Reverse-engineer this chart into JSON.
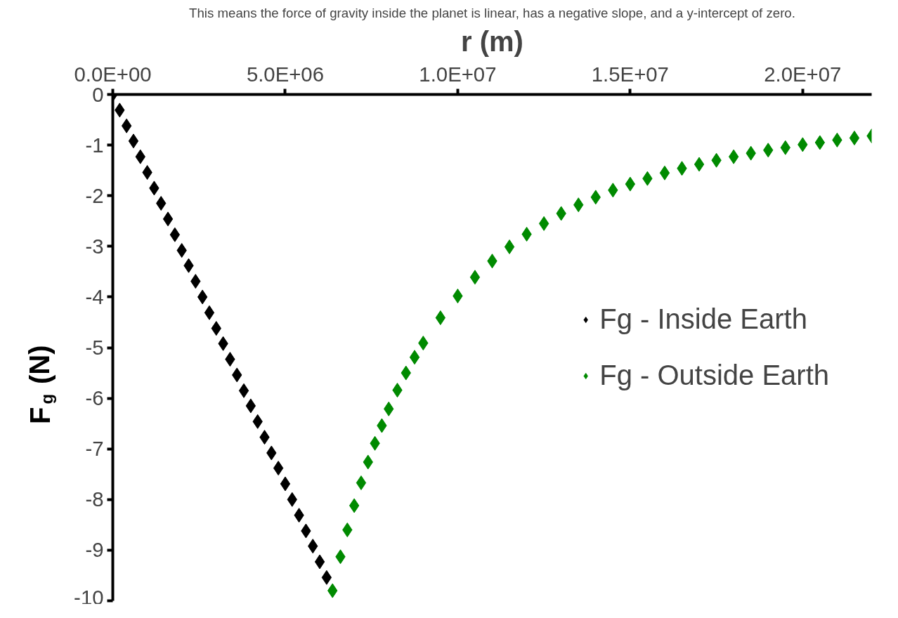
{
  "chart_data": {
    "type": "scatter",
    "xlabel": "r (m)",
    "ylabel": "F$_{g}$ (N)",
    "annotations": [
      "This means the force of gravity inside the planet is linear, has a negative slope, and a y-intercept of zero."
    ],
    "xlim": [
      0,
      22000000
    ],
    "ylim": [
      -10,
      0
    ],
    "xticks": [
      {
        "value": 0,
        "label": "0.0E+00"
      },
      {
        "value": 5000000,
        "label": "5.0E+06"
      },
      {
        "value": 10000000,
        "label": "1.0E+07"
      },
      {
        "value": 15000000,
        "label": "1.5E+07"
      },
      {
        "value": 20000000,
        "label": "2.0E+07"
      }
    ],
    "yticks": [
      0,
      -1,
      -2,
      -3,
      -4,
      -5,
      -6,
      -7,
      -8,
      -9,
      -10
    ],
    "grid": false,
    "legend": "right",
    "marker": "diamond",
    "series": [
      {
        "name": "Fg - Inside Earth",
        "color": "#000000",
        "x": [
          0,
          200000,
          400000,
          600000,
          800000,
          1000000,
          1200000,
          1400000,
          1600000,
          1800000,
          2000000,
          2200000,
          2400000,
          2600000,
          2800000,
          3000000,
          3200000,
          3400000,
          3600000,
          3800000,
          4000000,
          4200000,
          4400000,
          4600000,
          4800000,
          5000000,
          5200000,
          5400000,
          5600000,
          5800000,
          6000000,
          6200000
        ],
        "values": [
          0,
          -0.31,
          -0.62,
          -0.92,
          -1.23,
          -1.54,
          -1.85,
          -2.15,
          -2.46,
          -2.77,
          -3.08,
          -3.38,
          -3.69,
          -4.0,
          -4.31,
          -4.62,
          -4.92,
          -5.23,
          -5.54,
          -5.85,
          -6.15,
          -6.46,
          -6.77,
          -7.08,
          -7.38,
          -7.69,
          -8.0,
          -8.31,
          -8.62,
          -8.92,
          -9.23,
          -9.54
        ]
      },
      {
        "name": "Fg - Outside Earth",
        "color": "#008a00",
        "x": [
          6370000,
          6600000,
          6800000,
          7000000,
          7200000,
          7400000,
          7600000,
          7800000,
          8000000,
          8250000,
          8500000,
          8750000,
          9000000,
          9500000,
          10000000,
          10500000,
          11000000,
          11500000,
          12000000,
          12500000,
          13000000,
          13500000,
          14000000,
          14500000,
          15000000,
          15500000,
          16000000,
          16500000,
          17000000,
          17500000,
          18000000,
          18500000,
          19000000,
          19500000,
          20000000,
          20500000,
          21000000,
          21500000,
          22000000
        ],
        "values": [
          -9.8,
          -9.13,
          -8.6,
          -8.12,
          -7.67,
          -7.26,
          -6.89,
          -6.54,
          -6.21,
          -5.84,
          -5.5,
          -5.19,
          -4.91,
          -4.41,
          -3.98,
          -3.61,
          -3.29,
          -3.01,
          -2.76,
          -2.55,
          -2.35,
          -2.18,
          -2.03,
          -1.89,
          -1.77,
          -1.66,
          -1.55,
          -1.46,
          -1.38,
          -1.3,
          -1.23,
          -1.16,
          -1.1,
          -1.05,
          -0.99,
          -0.95,
          -0.9,
          -0.86,
          -0.82
        ]
      }
    ]
  }
}
